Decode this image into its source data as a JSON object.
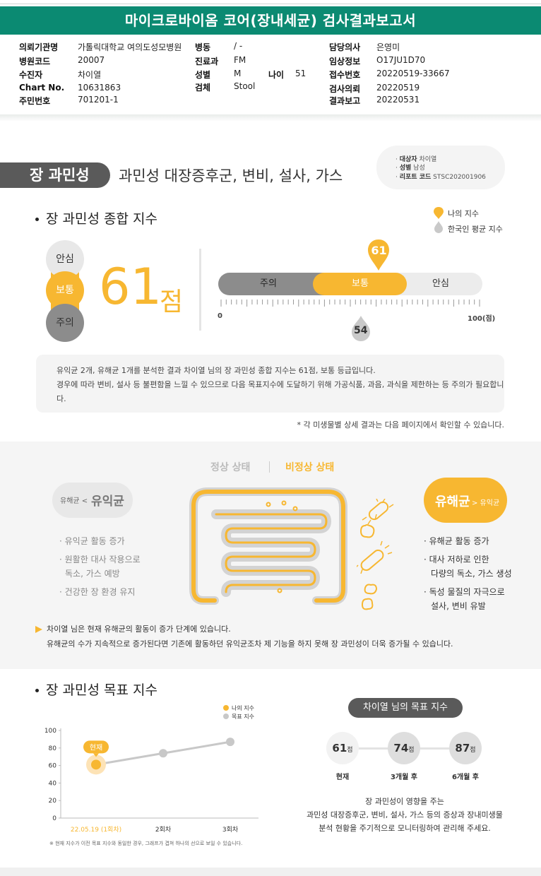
{
  "header": {
    "title": "마이크로바이옴 코어(장내세균) 검사결과보고서",
    "fields": [
      {
        "key": "의뢰기관명",
        "value": "가톨릭대학교 여의도성모병원"
      },
      {
        "key": "병동",
        "value": "/ -"
      },
      {
        "key": "담당의사",
        "value": "은영미"
      },
      {
        "key": "병원코드",
        "value": "20007"
      },
      {
        "key": "진료과",
        "value": "FM"
      },
      {
        "key": "임상정보",
        "value": "O17JU1D70"
      },
      {
        "key": "수진자",
        "value": "차이열"
      },
      {
        "key": "성별",
        "value": "M"
      },
      {
        "key": "나이",
        "value": "51"
      },
      {
        "key": "접수번호",
        "value": "20220519-33667"
      },
      {
        "key": "Chart No.",
        "value": "10631863"
      },
      {
        "key": "검체",
        "value": "Stool"
      },
      {
        "key": "검사의뢰",
        "value": "20220519"
      },
      {
        "key": "주민번호",
        "value": "701201-1"
      },
      {
        "key": "결과보고",
        "value": "20220531"
      }
    ]
  },
  "section1": {
    "pill": "장 과민성",
    "subtitle": "과민성 대장증후군, 변비, 설사, 가스",
    "patient_box": [
      {
        "k": "대상자",
        "v": "차이열"
      },
      {
        "k": "성별",
        "v": "남성"
      },
      {
        "k": "리포트 코드",
        "v": "STSC202001906"
      }
    ],
    "heading": "장 과민성 종합 지수",
    "legend": {
      "mine": "나의 지수",
      "avg": "한국인 평균 지수"
    },
    "grades": {
      "safe": "안심",
      "normal": "보통",
      "caution": "주의"
    },
    "score": "61",
    "score_unit": "점",
    "gauge": {
      "my_score": 61,
      "avg_score": 54,
      "my_label": "61",
      "avg_label": "54",
      "min_label": "0",
      "max_label": "100(점)",
      "range": [
        0,
        100
      ]
    },
    "summary": [
      "유익균 2개, 유해균 1개를 분석한 결과 차이열 님의 장 과민성 종합 지수는 61점, 보통 등급입니다.",
      "경우에 따라 변비, 설사 등 불편함을 느낄 수 있으므로 다음 목표지수에 도달하기 위해 가공식품, 과음, 과식을 제한하는 등 주의가 필요합니",
      "다."
    ],
    "note": "* 각 미생물별 상세 결과는 다음 페이지에서 확인할 수 있습니다."
  },
  "section2": {
    "tab_normal": "정상 상태",
    "tab_abnormal": "비정상 상태",
    "good_small": "유해균 <",
    "good_big": "유익균",
    "bad_big": "유해균",
    "bad_small": "> 유익균",
    "good_items": [
      "· 유익균 활동 증가",
      "· 원활한 대사 작용으로",
      "독소, 가스 예방",
      "· 건강한 장 환경 유지"
    ],
    "bad_items": [
      "· 유해균 활동 증가",
      "· 대사 저하로 인한",
      "다량의 독소, 가스 생성",
      "· 독성 물질의 자극으로",
      "설사, 변비 유발"
    ],
    "bottom": [
      "차이열 님은 현재 유해균의 활동이 증가 단계에 있습니다.",
      "유해균의 수가 지속적으로 증가된다면 기존에 활동하던 유익균조차 제 기능을 하지 못해 장 과민성이 더욱 증가될 수 있습니다."
    ]
  },
  "section3": {
    "heading": "장 과민성 목표 지수",
    "goal_title": "차이열 님의 목표 지수",
    "goals": [
      {
        "value": "61",
        "unit": "점",
        "label": "현재"
      },
      {
        "value": "74",
        "unit": "점",
        "label": "3개월 후"
      },
      {
        "value": "87",
        "unit": "점",
        "label": "6개월 후"
      }
    ],
    "goal_text": [
      "장 과민성이 영향을 주는",
      "과민성 대장증후군, 변비, 설사, 가스 등의 증상과 장내미생물",
      "분석 현황을 주기적으로 모니터링하여 관리해 주세요."
    ],
    "footnote": "※ 현재 지수가 이전 목표 지수와 동일한 경우, 그래프가 겹쳐 하나의 선으로 보일 수 있습니다.",
    "current_tag": "현재"
  },
  "chart_data": {
    "type": "line",
    "categories": [
      "22.05.19 (1회차)",
      "2회차",
      "3회차"
    ],
    "series": [
      {
        "name": "나의 지수",
        "values": [
          61,
          null,
          null
        ],
        "color": "#f7b731"
      },
      {
        "name": "목표 지수",
        "values": [
          61,
          74,
          87
        ],
        "color": "#c8c8c8"
      }
    ],
    "ylim": [
      0,
      100
    ],
    "yticks": [
      0,
      20,
      40,
      60,
      80,
      100
    ],
    "legend_position": "top-right",
    "grid": false
  }
}
